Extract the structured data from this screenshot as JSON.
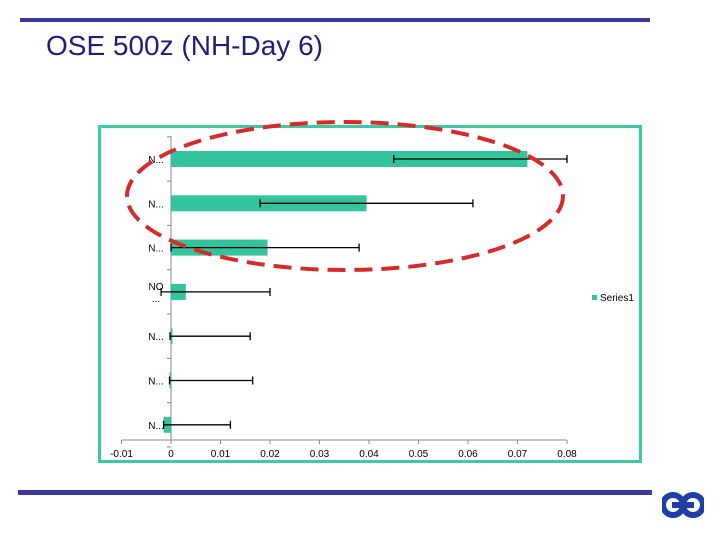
{
  "slide": {
    "title": "OSE 500z (NH-Day 6)"
  },
  "colors": {
    "bar": "#33c39d",
    "rule": "#3a3a9a",
    "frame": "#3cc9a4",
    "ellipse": "#d62b2b",
    "logo": "#1f3fa6"
  },
  "logo_icon": "ecmwf-logo-icon",
  "chart_data": {
    "type": "bar",
    "orientation": "horizontal",
    "title": "",
    "xlabel": "",
    "ylabel": "",
    "xlim": [
      -0.01,
      0.08
    ],
    "x_ticks": [
      "-0.01",
      "0",
      "0.01",
      "0.02",
      "0.03",
      "0.04",
      "0.05",
      "0.06",
      "0.07",
      "0.08"
    ],
    "x_tick_values": [
      -0.01,
      0,
      0.01,
      0.02,
      0.03,
      0.04,
      0.05,
      0.06,
      0.07,
      0.08
    ],
    "categories": [
      "N...",
      "N...",
      "N...",
      "NO ...",
      "N...",
      "N...",
      "N..."
    ],
    "series": [
      {
        "name": "Series1",
        "values": [
          0.072,
          0.0395,
          0.0195,
          0.003,
          0.0002,
          -0.0003,
          -0.0015
        ],
        "error_low": [
          0.045,
          0.018,
          0.0,
          -0.002,
          -0.0002,
          -0.0003,
          -0.0015
        ],
        "error_high": [
          0.08,
          0.061,
          0.038,
          0.02,
          0.016,
          0.0165,
          0.012
        ]
      }
    ],
    "legend": {
      "position": "right",
      "entries": [
        "Series1"
      ]
    },
    "grid": false,
    "annotation": "dashed red ellipse around top three bars"
  }
}
